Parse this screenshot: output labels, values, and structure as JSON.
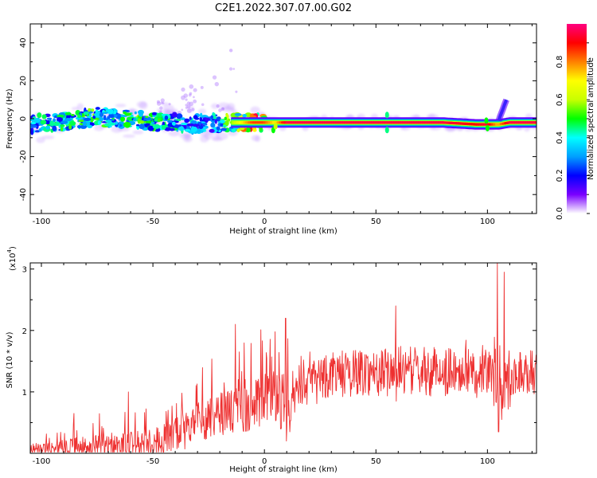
{
  "figure": {
    "title": "C2E1.2022.307.07.00.G02"
  },
  "chart_data": [
    {
      "type": "heatmap",
      "id": "spectrogram",
      "title": "",
      "xlabel": "Height of straight line (km)",
      "ylabel": "Frequency (Hz)",
      "xlim": [
        -105,
        122
      ],
      "ylim": [
        -50,
        50
      ],
      "xticks": [
        -100,
        -50,
        0,
        50,
        100
      ],
      "yticks": [
        -40,
        -20,
        0,
        20,
        40
      ],
      "grid": false,
      "description_of_values": "normalized spectral amplitude concentrated near 0 Hz; weak scattered energy below ~0 km, strong steady line from ~0 to ~122 km",
      "ridge": {
        "x": [
          -105,
          -95,
          -85,
          -75,
          -65,
          -55,
          -45,
          -35,
          -25,
          -15,
          -5,
          0,
          5,
          10,
          20,
          40,
          55,
          60,
          80,
          95,
          100,
          105,
          110,
          122
        ],
        "frequency": [
          -3,
          -2,
          -1,
          1,
          0,
          -1,
          -1,
          -3,
          -2,
          -2,
          -2,
          -2,
          -2,
          -2,
          -2,
          -2,
          -2,
          -2,
          -2,
          -3,
          -3,
          -3,
          -2,
          -2
        ],
        "amplitude": [
          0.35,
          0.4,
          0.45,
          0.45,
          0.4,
          0.45,
          0.4,
          0.35,
          0.3,
          0.55,
          0.85,
          0.85,
          0.7,
          0.95,
          0.95,
          0.95,
          0.95,
          0.95,
          0.95,
          0.9,
          0.95,
          0.75,
          0.95,
          0.95
        ]
      },
      "colorbar": {
        "label": "Normalized spectral amplitude",
        "range": [
          0.0,
          1.0
        ],
        "ticks": [
          0.0,
          0.2,
          0.4,
          0.6,
          0.8
        ],
        "tick_labels": [
          "0.0",
          "0.2",
          "0.4",
          "0.6",
          "0.8"
        ],
        "colors": [
          "#ffffff",
          "#7a00ff",
          "#0000ff",
          "#00a0ff",
          "#00ffff",
          "#00ff00",
          "#c8ff00",
          "#ffff00",
          "#ff8000",
          "#ff0000",
          "#ff0080"
        ]
      }
    },
    {
      "type": "line",
      "id": "snr",
      "title": "",
      "xlabel": "Height of straight line (km)",
      "ylabel": "SNR (10 * v/v)",
      "y_multiplier_label": "(x10",
      "y_multiplier_exp": "4",
      "y_multiplier_close": ")",
      "xlim": [
        -105,
        122
      ],
      "ylim": [
        0,
        3.1
      ],
      "xticks": [
        -100,
        -50,
        0,
        50,
        100
      ],
      "yticks": [
        1,
        2,
        3
      ],
      "grid": false,
      "line_color": "#ee3030",
      "envelope": {
        "x": [
          -105,
          -95,
          -85,
          -75,
          -65,
          -55,
          -45,
          -40,
          -35,
          -30,
          -25,
          -20,
          -15,
          -10,
          -5,
          0,
          5,
          8,
          12,
          15,
          20,
          25,
          30,
          40,
          50,
          55,
          60,
          65,
          70,
          80,
          90,
          95,
          100,
          103,
          105,
          108,
          110,
          115,
          122
        ],
        "y": [
          0.15,
          0.2,
          0.25,
          0.3,
          0.35,
          0.4,
          0.5,
          0.6,
          0.7,
          0.8,
          0.9,
          1.0,
          1.05,
          1.1,
          1.2,
          1.3,
          1.35,
          1.2,
          1.15,
          1.4,
          1.55,
          1.62,
          1.66,
          1.7,
          1.72,
          1.73,
          1.75,
          1.74,
          1.72,
          1.72,
          1.74,
          1.75,
          1.72,
          1.6,
          1.55,
          1.7,
          1.7,
          1.71,
          1.72
        ]
      },
      "spikes": [
        {
          "x": -85.5,
          "y": 0.65
        },
        {
          "x": -61,
          "y": 1.0
        },
        {
          "x": -13,
          "y": 2.1
        },
        {
          "x": 9.5,
          "y": 2.2
        },
        {
          "x": 59,
          "y": 2.4
        },
        {
          "x": 104.5,
          "y": 3.1
        },
        {
          "x": 107.5,
          "y": 2.95
        }
      ],
      "dips": [
        {
          "x": 9.8,
          "y": 0.2
        },
        {
          "x": 59.2,
          "y": 0.85
        },
        {
          "x": 105,
          "y": 0.35
        },
        {
          "x": 106.5,
          "y": 0.55
        }
      ]
    }
  ]
}
